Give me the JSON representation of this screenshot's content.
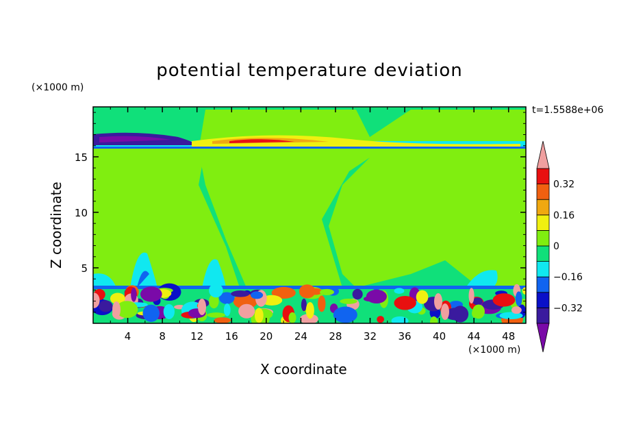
{
  "figure": {
    "title": "potential temperature deviation",
    "z_unit": "(×1000 m)",
    "x_unit": "(×1000 m)",
    "time_label": "t=1.5588e+06",
    "xlabel": "X coordinate",
    "ylabel": "Z coordinate"
  },
  "chart_data": {
    "type": "heatmap",
    "title": "potential temperature deviation",
    "xlabel": "X coordinate",
    "ylabel": "Z coordinate",
    "x_unit": "(×1000 m)",
    "y_unit": "(×1000 m)",
    "annotation": "t=1.5588e+06",
    "xlim": [
      0,
      50
    ],
    "ylim": [
      0,
      19.5
    ],
    "x_ticks": [
      4,
      8,
      12,
      16,
      20,
      24,
      28,
      32,
      36,
      40,
      44,
      48
    ],
    "y_ticks": [
      5,
      10,
      15
    ],
    "grid": false,
    "colorbar": {
      "levels": [
        -0.4,
        -0.32,
        -0.24,
        -0.16,
        -0.08,
        0,
        0.08,
        0.16,
        0.24,
        0.32,
        0.4
      ],
      "tick_labels": [
        "0.32",
        "0.16",
        "0",
        "−0.16",
        "−0.32"
      ],
      "tick_values": [
        0.32,
        0.16,
        0,
        -0.16,
        -0.32
      ],
      "colors": [
        "#7a0aa8",
        "#3a1a9e",
        "#0a10c8",
        "#1064f0",
        "#10e8f0",
        "#10e07a",
        "#80ee10",
        "#f0f010",
        "#f0a810",
        "#f06010",
        "#e81010",
        "#f0a0a0"
      ],
      "extend": "both"
    },
    "regions": [
      {
        "value": -0.04,
        "desc": "background"
      },
      {
        "value": 0.04,
        "desc": "upper broad region"
      },
      {
        "value": -0.36,
        "desc": "tropopause band left"
      },
      {
        "value": 0.28,
        "desc": "tropopause band center"
      },
      {
        "value": -0.12,
        "desc": "low-level plumes"
      },
      {
        "value": 0.4,
        "desc": "boundary layer convective cells"
      }
    ]
  }
}
